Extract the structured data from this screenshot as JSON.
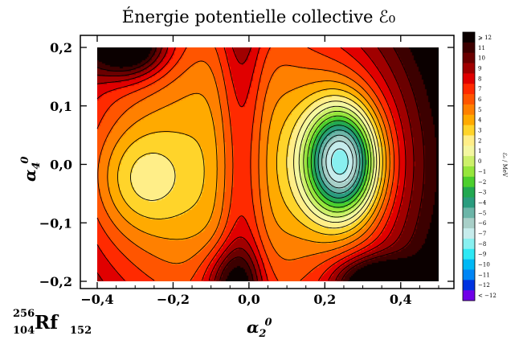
{
  "chart_data": {
    "type": "heatmap",
    "title": "Énergie potentielle collective ℰ₀",
    "xlabel": {
      "symbol": "α",
      "sub": "2",
      "sup": "0"
    },
    "ylabel": {
      "symbol": "α",
      "sub": "4",
      "sup": "0"
    },
    "xlim": [
      -0.4,
      0.5
    ],
    "ylim": [
      -0.2,
      0.2
    ],
    "x_ticks": [
      {
        "value": -0.4,
        "label": "−0,4"
      },
      {
        "value": -0.2,
        "label": "−0,2"
      },
      {
        "value": 0.0,
        "label": "0,0"
      },
      {
        "value": 0.2,
        "label": "0,2"
      },
      {
        "value": 0.4,
        "label": "0,4"
      }
    ],
    "y_ticks": [
      {
        "value": 0.2,
        "label": "0,2"
      },
      {
        "value": 0.1,
        "label": "0,1"
      },
      {
        "value": 0.0,
        "label": "0,0"
      },
      {
        "value": -0.1,
        "label": "−0,1"
      },
      {
        "value": -0.2,
        "label": "−0,2"
      }
    ],
    "colorbar": {
      "label": "ℰ₀ / MeV",
      "levels": [
        {
          "label": "⩾ 12",
          "color": "#0b0000"
        },
        {
          "label": "11",
          "color": "#3c0000"
        },
        {
          "label": "10",
          "color": "#6a0000"
        },
        {
          "label": "9",
          "color": "#a00000"
        },
        {
          "label": "8",
          "color": "#e00000"
        },
        {
          "label": "7",
          "color": "#ff2a00"
        },
        {
          "label": "6",
          "color": "#ff5500"
        },
        {
          "label": "5",
          "color": "#ff8000"
        },
        {
          "label": "4",
          "color": "#ffaa00"
        },
        {
          "label": "3",
          "color": "#ffd42a"
        },
        {
          "label": "2",
          "color": "#ffee88"
        },
        {
          "label": "1",
          "color": "#f4f7a0"
        },
        {
          "label": "0",
          "color": "#cdf06a"
        },
        {
          "label": "−1",
          "color": "#96e63c"
        },
        {
          "label": "−2",
          "color": "#4ccf2d"
        },
        {
          "label": "−3",
          "color": "#22a851"
        },
        {
          "label": "−4",
          "color": "#2a9c7e"
        },
        {
          "label": "−5",
          "color": "#6cb5a8"
        },
        {
          "label": "−6",
          "color": "#a8cfc8"
        },
        {
          "label": "−7",
          "color": "#c6ecec"
        },
        {
          "label": "−8",
          "color": "#88f0f0"
        },
        {
          "label": "−9",
          "color": "#2ee8f4"
        },
        {
          "label": "−10",
          "color": "#00b8f5"
        },
        {
          "label": "−11",
          "color": "#0085f5"
        },
        {
          "label": "−12",
          "color": "#0033e0"
        },
        {
          "label": "< −12",
          "color": "#7000e8"
        }
      ]
    },
    "extrema": [
      {
        "kind": "minimum",
        "x": 0.245,
        "y": 0.005,
        "value": -10
      },
      {
        "kind": "minimum",
        "x": -0.29,
        "y": -0.025,
        "value": 1
      },
      {
        "kind": "maximum",
        "x": -0.32,
        "y": 0.2,
        "value": 11
      },
      {
        "kind": "maximum",
        "x": -0.05,
        "y": -0.2,
        "value": 8
      },
      {
        "kind": "maximum",
        "x": 0.33,
        "y": -0.2,
        "value": 10
      }
    ]
  },
  "nucleus": {
    "mass": "256",
    "charge": "104",
    "symbol": "Rf",
    "neutrons": "152"
  }
}
